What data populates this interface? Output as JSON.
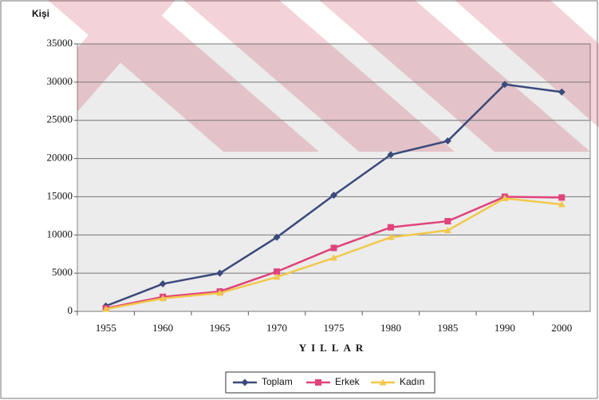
{
  "chart_data": {
    "type": "line",
    "ylabel": "Kişi",
    "xlabel": "YILLAR",
    "categories": [
      "1955",
      "1960",
      "1965",
      "1970",
      "1975",
      "1980",
      "1985",
      "1990",
      "2000"
    ],
    "series": [
      {
        "name": "Toplam",
        "color": "#3b4a7c",
        "marker": "diamond",
        "values": [
          700,
          3600,
          5000,
          9700,
          15200,
          20500,
          22300,
          29700,
          28700
        ]
      },
      {
        "name": "Erkek",
        "color": "#e0437c",
        "marker": "square",
        "values": [
          400,
          1900,
          2600,
          5200,
          8300,
          11000,
          11800,
          15000,
          14900
        ]
      },
      {
        "name": "Kadın",
        "color": "#f2c84b",
        "marker": "triangle",
        "values": [
          300,
          1700,
          2400,
          4500,
          7000,
          9700,
          10600,
          14800,
          14000
        ]
      }
    ],
    "ylim": [
      0,
      35000
    ],
    "yticks": [
      0,
      5000,
      10000,
      15000,
      20000,
      25000,
      30000,
      35000
    ],
    "grid": true,
    "legend": "bottom"
  }
}
